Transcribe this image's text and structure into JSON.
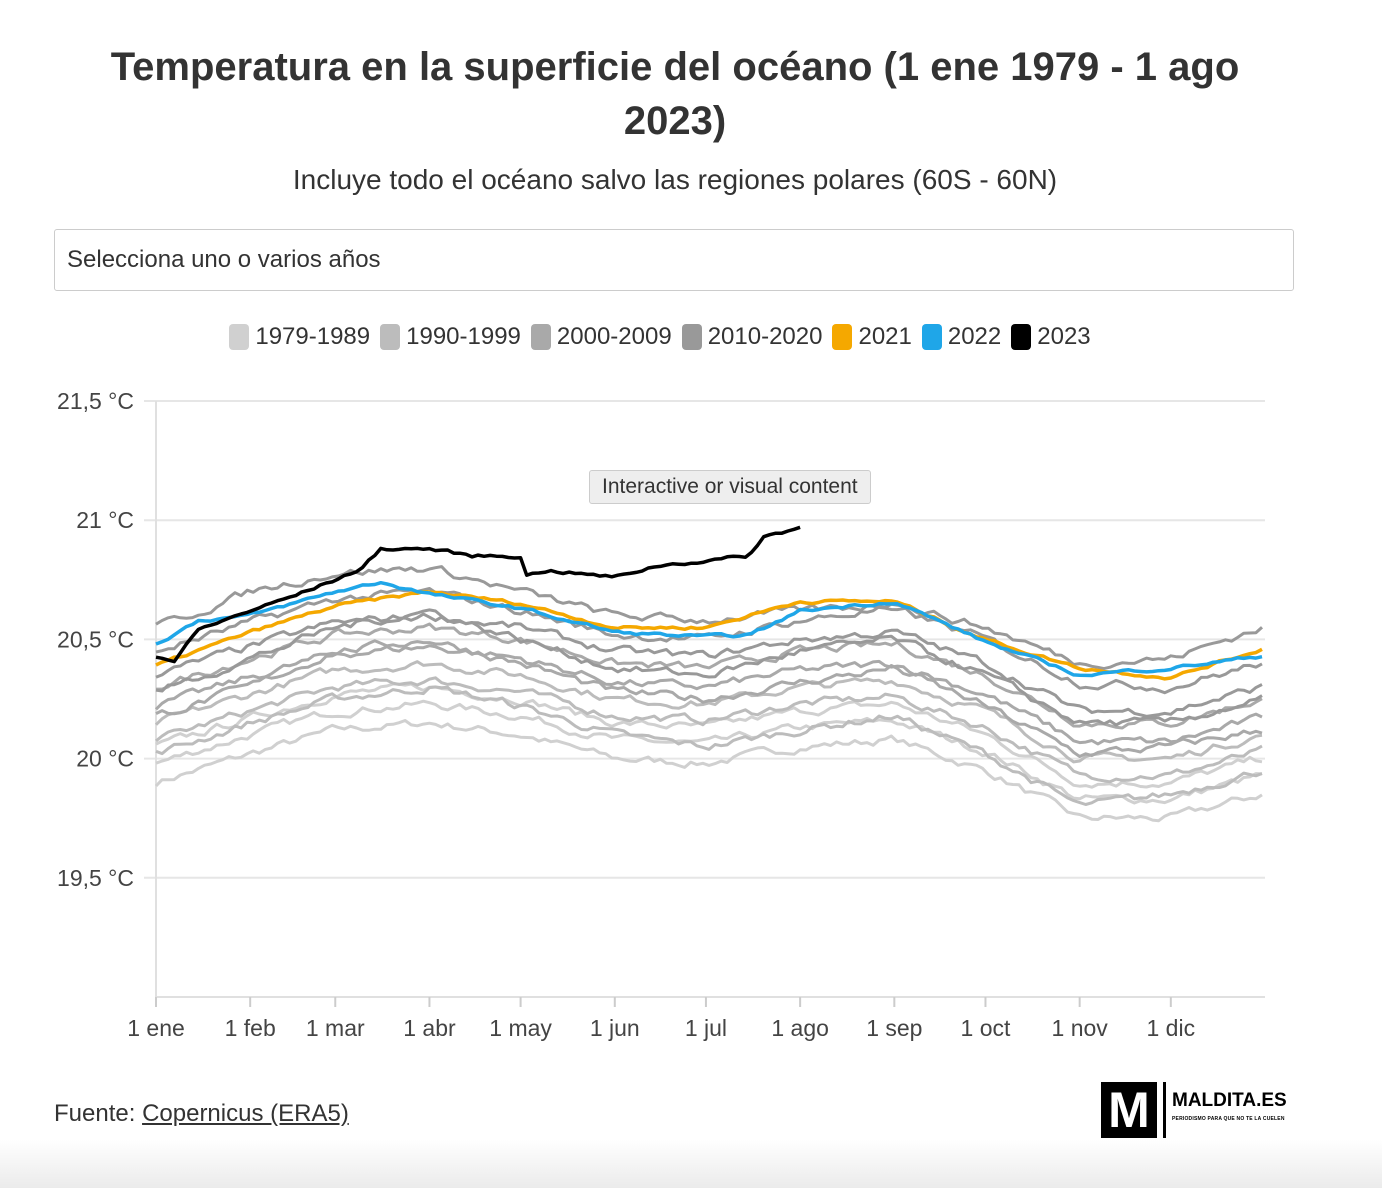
{
  "header": {
    "title": "Temperatura en la superficie del océano (1 ene 1979 - 1 ago 2023)",
    "subtitle": "Incluye todo el océano salvo las regiones polares (60S - 60N)"
  },
  "select": {
    "placeholder": "Selecciona uno o varios años"
  },
  "tooltip": "Interactive or visual content",
  "footer": {
    "source_label": "Fuente: ",
    "source_link": "Copernicus (ERA5)",
    "logo_text": "MALDITA.ES",
    "logo_tagline": "PERIODISMO PARA QUE NO TE LA CUELEN"
  },
  "chart_data": {
    "type": "line",
    "title": "Temperatura en la superficie del océano (1 ene 1979 - 1 ago 2023)",
    "ylim": [
      19,
      21.5
    ],
    "yticks": [
      {
        "v": 21.5,
        "label": "21,5 °C"
      },
      {
        "v": 21,
        "label": "21 °C"
      },
      {
        "v": 20.5,
        "label": "20,5 °C"
      },
      {
        "v": 20,
        "label": "20 °C"
      },
      {
        "v": 19.5,
        "label": "19,5 °C"
      }
    ],
    "xticks": [
      {
        "day": 0,
        "label": "1 ene"
      },
      {
        "day": 31,
        "label": "1 feb"
      },
      {
        "day": 59,
        "label": "1 mar"
      },
      {
        "day": 90,
        "label": "1 abr"
      },
      {
        "day": 120,
        "label": "1 may"
      },
      {
        "day": 151,
        "label": "1 jun"
      },
      {
        "day": 181,
        "label": "1 jul"
      },
      {
        "day": 212,
        "label": "1 ago"
      },
      {
        "day": 243,
        "label": "1 sep"
      },
      {
        "day": 273,
        "label": "1 oct"
      },
      {
        "day": 304,
        "label": "1 nov"
      },
      {
        "day": 334,
        "label": "1 dic"
      }
    ],
    "grid": true,
    "legend_placement": "top",
    "legend": [
      {
        "name": "1979-1989",
        "color": "#d0d0d0"
      },
      {
        "name": "1990-1999",
        "color": "#bcbcbc"
      },
      {
        "name": "2000-2009",
        "color": "#a9a9a9"
      },
      {
        "name": "2010-2020",
        "color": "#999999"
      },
      {
        "name": "2021",
        "color": "#f5a800"
      },
      {
        "name": "2022",
        "color": "#1fa6e8"
      },
      {
        "name": "2023",
        "color": "#000000"
      }
    ],
    "monthly_days": [
      0,
      31,
      59,
      90,
      120,
      151,
      181,
      212,
      243,
      273,
      304,
      334,
      364
    ],
    "gray_series": [
      {
        "group": "1979-1989",
        "values": [
          19.9,
          20.02,
          20.12,
          20.15,
          20.1,
          20.0,
          19.98,
          20.05,
          20.08,
          19.95,
          19.75,
          19.75,
          19.85
        ]
      },
      {
        "group": "1979-1989",
        "values": [
          19.98,
          20.1,
          20.2,
          20.23,
          20.18,
          20.08,
          20.06,
          20.13,
          20.16,
          20.03,
          19.83,
          19.83,
          19.93
        ]
      },
      {
        "group": "1979-1989",
        "values": [
          20.05,
          20.17,
          20.27,
          20.3,
          20.25,
          20.15,
          20.13,
          20.2,
          20.23,
          20.1,
          19.9,
          19.9,
          20.0
        ]
      },
      {
        "group": "1990-1999",
        "values": [
          20.08,
          20.2,
          20.3,
          20.33,
          20.28,
          20.18,
          20.16,
          20.23,
          20.26,
          20.13,
          19.93,
          19.93,
          20.03
        ]
      },
      {
        "group": "1990-1999",
        "values": [
          20.15,
          20.27,
          20.37,
          20.4,
          20.35,
          20.25,
          20.23,
          20.3,
          20.33,
          20.2,
          20.0,
          20.0,
          20.1
        ]
      },
      {
        "group": "1990-1999",
        "values": [
          20.02,
          20.15,
          20.25,
          20.3,
          20.22,
          20.1,
          20.05,
          20.12,
          20.18,
          20.02,
          19.8,
          19.85,
          19.95
        ]
      },
      {
        "group": "2000-2009",
        "values": [
          20.22,
          20.34,
          20.44,
          20.47,
          20.42,
          20.32,
          20.3,
          20.37,
          20.4,
          20.27,
          20.07,
          20.07,
          20.17
        ]
      },
      {
        "group": "2000-2009",
        "values": [
          20.3,
          20.42,
          20.52,
          20.55,
          20.5,
          20.4,
          20.38,
          20.45,
          20.48,
          20.35,
          20.15,
          20.15,
          20.25
        ]
      },
      {
        "group": "2000-2009",
        "values": [
          20.18,
          20.3,
          20.45,
          20.5,
          20.4,
          20.28,
          20.25,
          20.32,
          20.38,
          20.22,
          20.02,
          20.05,
          20.12
        ]
      },
      {
        "group": "2010-2020",
        "values": [
          20.35,
          20.47,
          20.57,
          20.6,
          20.55,
          20.45,
          20.43,
          20.5,
          20.53,
          20.4,
          20.2,
          20.2,
          20.3
        ]
      },
      {
        "group": "2010-2020",
        "values": [
          20.45,
          20.57,
          20.67,
          20.7,
          20.62,
          20.52,
          20.5,
          20.58,
          20.63,
          20.5,
          20.32,
          20.3,
          20.4
        ]
      },
      {
        "group": "2010-2020",
        "values": [
          20.55,
          20.7,
          20.78,
          20.8,
          20.7,
          20.6,
          20.58,
          20.62,
          20.65,
          20.55,
          20.4,
          20.42,
          20.55
        ]
      },
      {
        "group": "2010-2020",
        "values": [
          20.28,
          20.42,
          20.55,
          20.62,
          20.5,
          20.38,
          20.35,
          20.45,
          20.5,
          20.35,
          20.15,
          20.15,
          20.25
        ]
      }
    ],
    "series": [
      {
        "name": "2021",
        "color": "#f5a800",
        "days": [
          0,
          31,
          59,
          90,
          120,
          151,
          181,
          212,
          243,
          273,
          304,
          334,
          364
        ],
        "values": [
          20.39,
          20.53,
          20.64,
          20.7,
          20.65,
          20.55,
          20.55,
          20.66,
          20.66,
          20.5,
          20.38,
          20.34,
          20.46
        ]
      },
      {
        "name": "2022",
        "color": "#1fa6e8",
        "days": [
          0,
          14,
          31,
          59,
          74,
          90,
          120,
          151,
          181,
          196,
          212,
          243,
          273,
          304,
          323,
          334,
          364
        ],
        "values": [
          20.48,
          20.58,
          20.6,
          20.7,
          20.74,
          20.69,
          20.63,
          20.53,
          20.51,
          20.52,
          20.62,
          20.66,
          20.49,
          20.35,
          20.37,
          20.38,
          20.43
        ]
      },
      {
        "name": "2023",
        "color": "#000000",
        "days": [
          0,
          6,
          14,
          31,
          45,
          59,
          68,
          74,
          90,
          104,
          120,
          122,
          129,
          151,
          165,
          181,
          195,
          200,
          212
        ],
        "values": [
          20.43,
          20.41,
          20.54,
          20.62,
          20.68,
          20.75,
          20.8,
          20.88,
          20.88,
          20.85,
          20.85,
          20.77,
          20.79,
          20.76,
          20.81,
          20.83,
          20.85,
          20.93,
          20.97
        ]
      }
    ]
  }
}
